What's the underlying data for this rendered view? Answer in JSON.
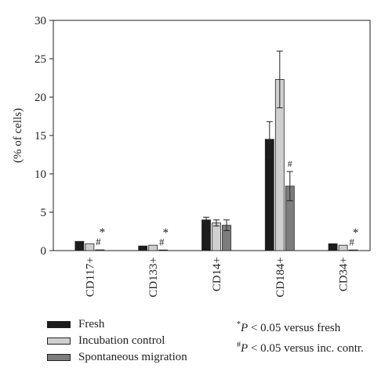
{
  "chart_data": {
    "type": "bar",
    "title": "",
    "xlabel": "",
    "ylabel": "(% of cells)",
    "ylim": [
      0,
      30
    ],
    "yticks": [
      "0",
      "5",
      "10",
      "15",
      "20",
      "25",
      "30"
    ],
    "categories": [
      "CD117+",
      "CD133+",
      "CD14+",
      "CD184+",
      "CD34+"
    ],
    "series": [
      {
        "name": "Fresh",
        "color": "#1c1c1c",
        "values": [
          1.2,
          0.6,
          4.0,
          14.5,
          0.9
        ],
        "errors": [
          0.1,
          0.1,
          0.35,
          2.3,
          0.1
        ]
      },
      {
        "name": "Incubation control",
        "color": "#cfcfcf",
        "values": [
          0.9,
          0.7,
          3.6,
          22.3,
          0.7
        ],
        "errors": [
          0.1,
          0.1,
          0.4,
          3.7,
          0.1
        ]
      },
      {
        "name": "Spontaneous migration",
        "color": "#7d7d7d",
        "values": [
          0.1,
          0.05,
          3.3,
          8.4,
          0.05
        ],
        "errors": [
          0.05,
          0.03,
          0.7,
          1.9,
          0.03
        ]
      }
    ],
    "annotations": [
      {
        "category": "CD117+",
        "series": "Spontaneous migration",
        "marks": [
          "#",
          "*"
        ]
      },
      {
        "category": "CD133+",
        "series": "Spontaneous migration",
        "marks": [
          "#",
          "*"
        ]
      },
      {
        "category": "CD184+",
        "series": "Spontaneous migration",
        "marks": [
          "#"
        ]
      },
      {
        "category": "CD34+",
        "series": "Spontaneous migration",
        "marks": [
          "#",
          "*"
        ]
      }
    ],
    "legend_position": "bottom-left"
  },
  "footnotes": [
    {
      "symbol": "*",
      "italic": "P",
      "text": " < 0.05 versus fresh"
    },
    {
      "symbol": "#",
      "italic": "P",
      "text": " < 0.05 versus inc. contr."
    }
  ]
}
